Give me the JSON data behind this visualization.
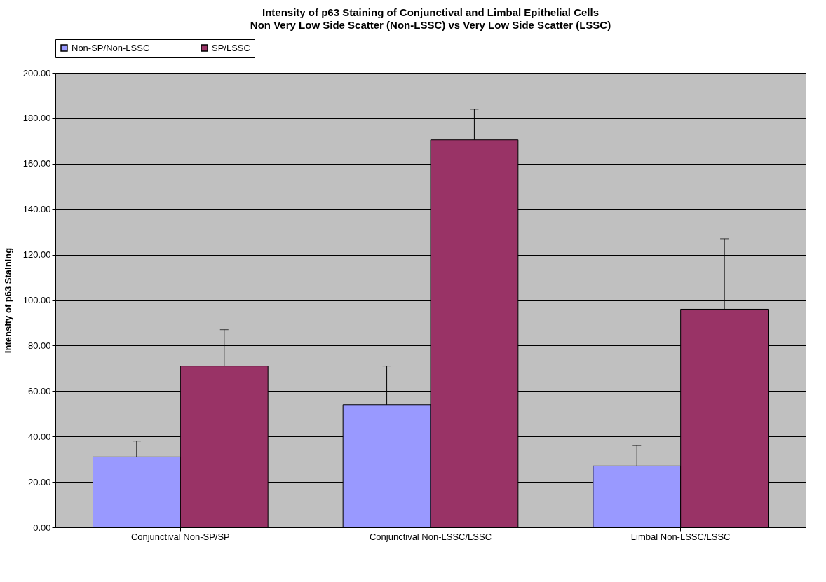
{
  "chart_data": {
    "type": "bar",
    "title": "Intensity of p63 Staining of Conjunctival and Limbal Epithelial Cells",
    "subtitle": "Non Very Low Side Scatter (Non-LSSC) vs Very Low Side Scatter (LSSC)",
    "ylabel": "Intensity of p63 Staining",
    "categories": [
      "Conjunctival Non-SP/SP",
      "Conjunctival Non-LSSC/LSSC",
      "Limbal Non-LSSC/LSSC"
    ],
    "series": [
      {
        "name": "Non-SP/Non-LSSC",
        "color": "#9999ff",
        "values": [
          31,
          54,
          27
        ],
        "errors": [
          [
            31,
            38
          ],
          [
            54,
            71
          ],
          [
            27,
            36
          ]
        ]
      },
      {
        "name": "SP/LSSC",
        "color": "#993366",
        "values": [
          71,
          170.5,
          96
        ],
        "errors": [
          [
            71,
            87
          ],
          [
            170.5,
            184
          ],
          [
            96,
            127
          ]
        ]
      }
    ],
    "ylim": [
      0,
      200
    ],
    "yticks": [
      {
        "value": 0,
        "label": "0.00"
      },
      {
        "value": 20,
        "label": "20.00"
      },
      {
        "value": 40,
        "label": "40.00"
      },
      {
        "value": 60,
        "label": "60.00"
      },
      {
        "value": 80,
        "label": "80.00"
      },
      {
        "value": 100,
        "label": "100.00"
      },
      {
        "value": 120,
        "label": "120.00"
      },
      {
        "value": 140,
        "label": "140.00"
      },
      {
        "value": 160,
        "label": "160.00"
      },
      {
        "value": 180,
        "label": "180.00"
      },
      {
        "value": 200,
        "label": "200.00"
      }
    ],
    "grid": "y",
    "legend": "top"
  }
}
